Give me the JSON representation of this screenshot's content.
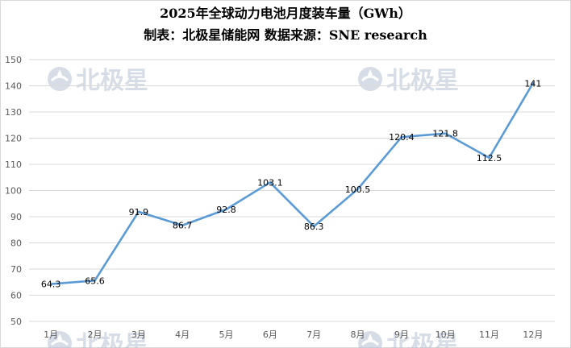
{
  "header": {
    "title": "2025年全球动力电池月度装车量（GWh）",
    "subtitle": "制表：北极星储能网 数据来源：SNE research"
  },
  "watermark": {
    "text": "北极星",
    "icon": "polaris-logo-icon",
    "color": "#b7c3d3"
  },
  "chart_data": {
    "type": "line",
    "categories": [
      "1月",
      "2月",
      "3月",
      "4月",
      "5月",
      "6月",
      "7月",
      "8月",
      "9月",
      "10月",
      "11月",
      "12月"
    ],
    "series": [
      {
        "values": [
          64.3,
          65.6,
          91.9,
          86.7,
          92.8,
          103.1,
          86.3,
          100.5,
          120.4,
          121.8,
          112.5,
          141
        ],
        "color": "#5b9bd5"
      }
    ],
    "data_labels": [
      "64.3",
      "65.6",
      "91.9",
      "86.7",
      "92.8",
      "103.1",
      "86.3",
      "100.5",
      "120.4",
      "121.8",
      "112.5",
      "141"
    ],
    "ylim": [
      50,
      150
    ],
    "yticks": [
      50,
      60,
      70,
      80,
      90,
      100,
      110,
      120,
      130,
      140,
      150
    ],
    "grid": true,
    "legend": "none",
    "gridline_color": "#d9d9d9"
  }
}
